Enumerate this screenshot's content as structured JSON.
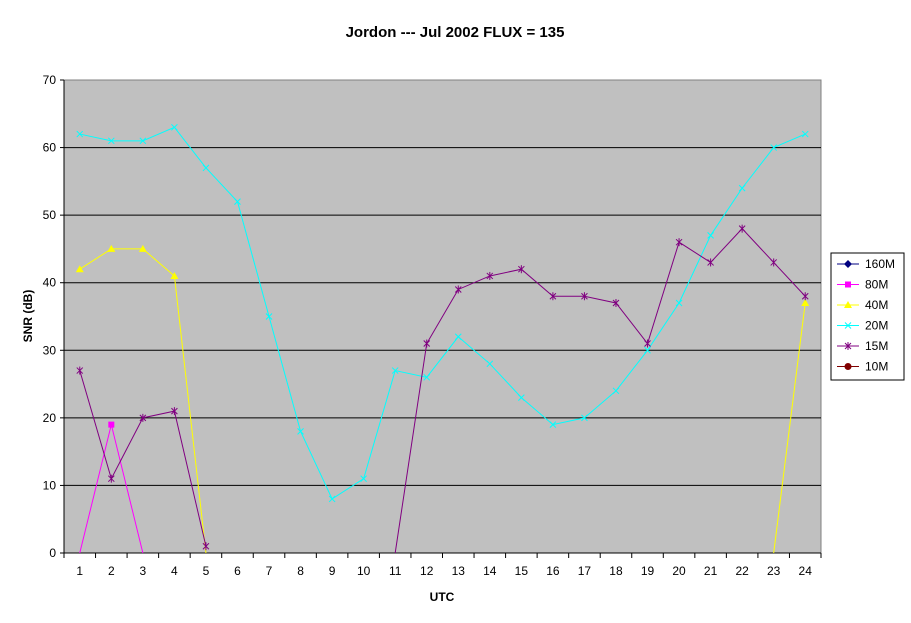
{
  "chart_data": {
    "type": "line",
    "title": "Jordon --- Jul 2002  FLUX = 135",
    "xlabel": "UTC",
    "ylabel": "SNR (dB)",
    "x": [
      "1",
      "2",
      "3",
      "4",
      "5",
      "6",
      "7",
      "8",
      "9",
      "10",
      "11",
      "12",
      "13",
      "14",
      "15",
      "16",
      "17",
      "18",
      "19",
      "20",
      "21",
      "22",
      "23",
      "24"
    ],
    "ylim": [
      0,
      70
    ],
    "yticks": [
      "0",
      "10",
      "20",
      "30",
      "40",
      "50",
      "60",
      "70"
    ],
    "grid": "horizontal",
    "legend_position": "right",
    "series": [
      {
        "name": "160M",
        "color": "#000080",
        "marker": "diamond",
        "values": [
          null,
          null,
          null,
          null,
          null,
          null,
          null,
          null,
          null,
          null,
          null,
          null,
          null,
          null,
          null,
          null,
          null,
          null,
          null,
          null,
          null,
          null,
          null,
          null
        ]
      },
      {
        "name": "80M",
        "color": "#ff00ff",
        "marker": "square",
        "values": [
          0,
          19,
          0,
          null,
          null,
          null,
          null,
          null,
          null,
          null,
          null,
          null,
          null,
          null,
          null,
          null,
          null,
          null,
          null,
          null,
          null,
          null,
          null,
          null
        ]
      },
      {
        "name": "40M",
        "color": "#ffff00",
        "marker": "triangle",
        "values": [
          42,
          45,
          45,
          41,
          0,
          null,
          null,
          null,
          null,
          null,
          null,
          null,
          null,
          null,
          null,
          null,
          null,
          null,
          null,
          null,
          null,
          null,
          0,
          37
        ]
      },
      {
        "name": "20M",
        "color": "#00ffff",
        "marker": "x",
        "values": [
          62,
          61,
          61,
          63,
          57,
          52,
          35,
          18,
          8,
          11,
          27,
          26,
          32,
          28,
          23,
          19,
          20,
          24,
          30,
          37,
          47,
          54,
          60,
          62
        ]
      },
      {
        "name": "15M",
        "color": "#800080",
        "marker": "star",
        "values": [
          27,
          11,
          20,
          21,
          1,
          null,
          null,
          null,
          null,
          null,
          0,
          31,
          39,
          41,
          42,
          38,
          38,
          37,
          31,
          46,
          43,
          48,
          43,
          38
        ]
      },
      {
        "name": "10M",
        "color": "#800000",
        "marker": "circle",
        "values": [
          null,
          null,
          null,
          null,
          null,
          null,
          null,
          null,
          null,
          null,
          null,
          null,
          null,
          null,
          null,
          null,
          null,
          null,
          null,
          null,
          null,
          null,
          null,
          null
        ]
      }
    ]
  }
}
